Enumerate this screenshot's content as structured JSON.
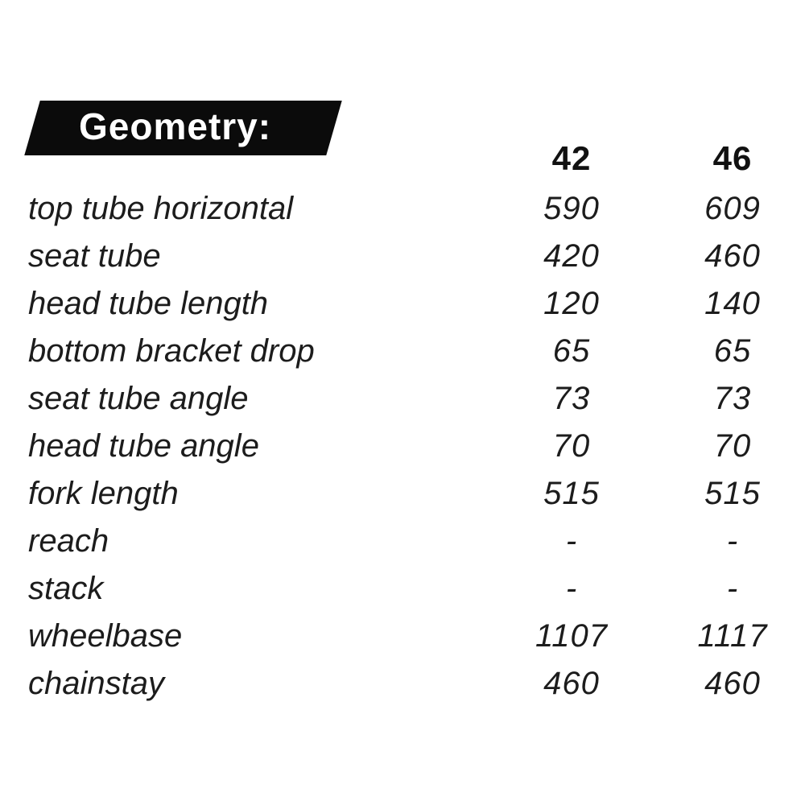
{
  "banner": {
    "title": "Geometry:",
    "bg_color": "#0b0b0b",
    "text_color": "#ffffff"
  },
  "colors": {
    "background": "#ffffff",
    "text": "#1c1c1c"
  },
  "chart_data": {
    "type": "table",
    "title": "Geometry:",
    "columns": [
      "42",
      "46"
    ],
    "rows": [
      {
        "label": "top tube horizontal",
        "values": [
          "590",
          "609"
        ]
      },
      {
        "label": "seat tube",
        "values": [
          "420",
          "460"
        ]
      },
      {
        "label": "head tube length",
        "values": [
          "120",
          "140"
        ]
      },
      {
        "label": "bottom bracket drop",
        "values": [
          "65",
          "65"
        ]
      },
      {
        "label": "seat tube angle",
        "values": [
          "73",
          "73"
        ]
      },
      {
        "label": "head tube angle",
        "values": [
          "70",
          "70"
        ]
      },
      {
        "label": "fork length",
        "values": [
          "515",
          "515"
        ]
      },
      {
        "label": "reach",
        "values": [
          "-",
          "-"
        ]
      },
      {
        "label": "stack",
        "values": [
          "-",
          "-"
        ]
      },
      {
        "label": "wheelbase",
        "values": [
          "1107",
          "1117"
        ]
      },
      {
        "label": "chainstay",
        "values": [
          "460",
          "460"
        ]
      }
    ]
  }
}
